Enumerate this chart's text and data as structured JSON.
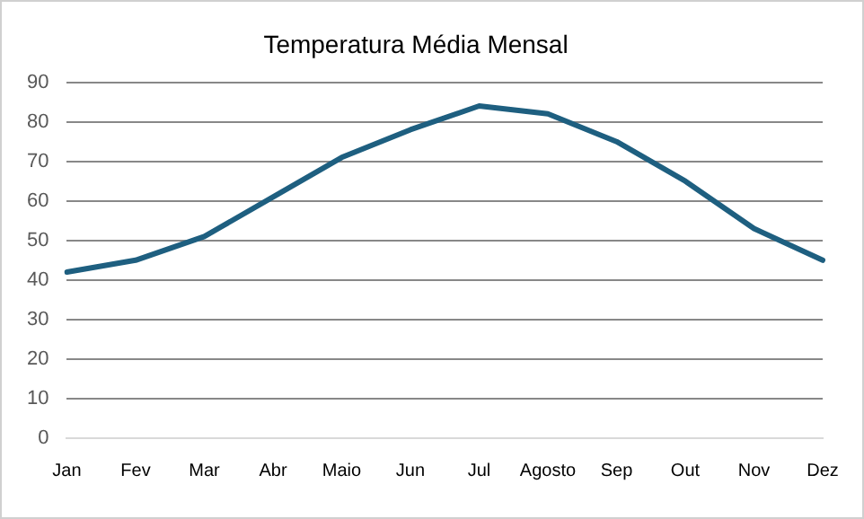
{
  "chart_data": {
    "type": "line",
    "title": "Temperatura Média Mensal",
    "categories": [
      "Jan",
      "Fev",
      "Mar",
      "Abr",
      "Maio",
      "Jun",
      "Jul",
      "Agosto",
      "Sep",
      "Out",
      "Nov",
      "Dez"
    ],
    "series": [
      {
        "color": "#1e5f80",
        "values": [
          42,
          45,
          51,
          61,
          71,
          78,
          84,
          82,
          75,
          65,
          53,
          45
        ]
      }
    ],
    "ylim": [
      0,
      90
    ],
    "yticks": [
      0,
      10,
      20,
      30,
      40,
      50,
      60,
      70,
      80,
      90
    ],
    "grid": "y",
    "legend": false,
    "marker": "none",
    "line_style": "solid"
  }
}
